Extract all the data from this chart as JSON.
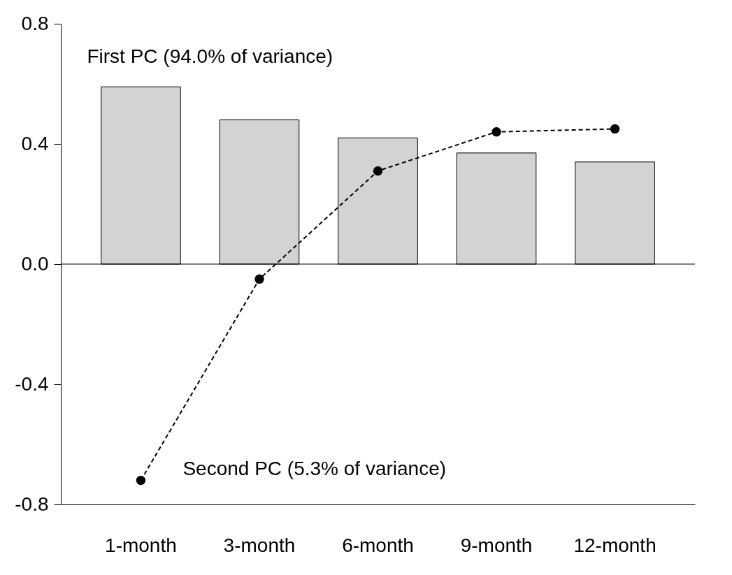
{
  "chart_data": {
    "type": "bar",
    "categories": [
      "1-month",
      "3-month",
      "6-month",
      "9-month",
      "12-month"
    ],
    "series": [
      {
        "name": "First PC (94.0% of variance)",
        "color": "#d3d3d3",
        "values": [
          0.59,
          0.48,
          0.42,
          0.37,
          0.34
        ]
      },
      {
        "name": "Second PC (5.3% of variance)",
        "type": "line",
        "color": "#000000",
        "values": [
          -0.72,
          -0.05,
          0.31,
          0.44,
          0.45
        ],
        "marker": "circle",
        "line_style": "dashed"
      }
    ],
    "ylim": [
      -0.8,
      0.8
    ],
    "yticks": [
      -0.8,
      -0.4,
      {
        "value": 0,
        "label": "0.0"
      },
      0.4,
      0.8
    ],
    "ref_lines": [
      {
        "axis": "y",
        "value": 0,
        "color": "#000000"
      }
    ],
    "grid": false,
    "legend": false
  }
}
